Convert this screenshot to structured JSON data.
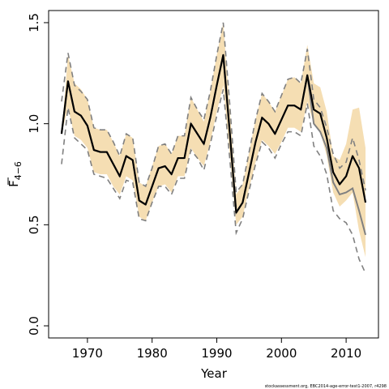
{
  "chart_data": {
    "type": "line",
    "xlabel": "Year",
    "ylabel": {
      "base": "F",
      "sub": "4−6"
    },
    "xlim": [
      1964,
      2015
    ],
    "ylim": [
      -0.06,
      1.56
    ],
    "x_ticks": [
      1970,
      1980,
      1990,
      2000,
      2010
    ],
    "y_ticks": [
      0.0,
      0.5,
      1.0,
      1.5
    ],
    "x_tick_labels": [
      "1970",
      "1980",
      "1990",
      "2000",
      "2010"
    ],
    "y_tick_labels": [
      "0.0",
      "0.5",
      "1.0",
      "1.5"
    ],
    "footer": "stockassessment.org, EBC2014-age-error-test1-2007, r4298",
    "colors": {
      "band": "#f5deb3",
      "estimate": "#000000",
      "reference": "#808080",
      "reference_ci": "#808080"
    },
    "years": [
      1966,
      1967,
      1968,
      1969,
      1970,
      1971,
      1972,
      1973,
      1974,
      1975,
      1976,
      1977,
      1978,
      1979,
      1980,
      1981,
      1982,
      1983,
      1984,
      1985,
      1986,
      1987,
      1988,
      1989,
      1990,
      1991,
      1992,
      1993,
      1994,
      1995,
      1996,
      1997,
      1998,
      1999,
      2000,
      2001,
      2002,
      2003,
      2004,
      2005,
      2006,
      2007,
      2008,
      2009,
      2010,
      2011,
      2012,
      2013
    ],
    "estimate": [
      0.95,
      1.21,
      1.06,
      1.04,
      0.99,
      0.87,
      0.86,
      0.86,
      0.8,
      0.74,
      0.84,
      0.82,
      0.62,
      0.6,
      0.69,
      0.78,
      0.79,
      0.75,
      0.83,
      0.83,
      1.0,
      0.95,
      0.9,
      1.03,
      1.19,
      1.34,
      0.96,
      0.56,
      0.61,
      0.76,
      0.91,
      1.03,
      1.0,
      0.95,
      1.02,
      1.09,
      1.09,
      1.07,
      1.24,
      1.07,
      1.05,
      0.93,
      0.76,
      0.7,
      0.74,
      0.84,
      0.78,
      0.61
    ],
    "band_lower": [
      0.95,
      1.08,
      0.94,
      0.92,
      0.88,
      0.76,
      0.75,
      0.75,
      0.69,
      0.65,
      0.74,
      0.72,
      0.54,
      0.52,
      0.61,
      0.69,
      0.7,
      0.66,
      0.74,
      0.74,
      0.88,
      0.83,
      0.79,
      0.91,
      1.06,
      1.19,
      0.85,
      0.5,
      0.54,
      0.68,
      0.81,
      0.92,
      0.89,
      0.85,
      0.91,
      0.98,
      0.98,
      0.96,
      1.11,
      1.0,
      0.96,
      0.84,
      0.66,
      0.59,
      0.62,
      0.66,
      0.47,
      0.34
    ],
    "band_upper": [
      0.95,
      1.34,
      1.2,
      1.17,
      1.12,
      0.98,
      0.97,
      0.97,
      0.91,
      0.84,
      0.95,
      0.93,
      0.71,
      0.69,
      0.79,
      0.89,
      0.9,
      0.85,
      0.94,
      0.94,
      1.13,
      1.07,
      1.01,
      1.16,
      1.34,
      1.5,
      1.08,
      0.65,
      0.7,
      0.86,
      1.02,
      1.15,
      1.11,
      1.06,
      1.14,
      1.22,
      1.23,
      1.2,
      1.39,
      1.2,
      1.18,
      1.06,
      0.84,
      0.82,
      0.9,
      1.07,
      1.08,
      0.88
    ],
    "reference_estimate": [
      0.95,
      1.21,
      1.06,
      1.04,
      0.99,
      0.87,
      0.86,
      0.86,
      0.8,
      0.74,
      0.84,
      0.82,
      0.62,
      0.6,
      0.69,
      0.78,
      0.79,
      0.75,
      0.83,
      0.83,
      1.0,
      0.95,
      0.9,
      1.03,
      1.19,
      1.34,
      0.96,
      0.56,
      0.61,
      0.76,
      0.91,
      1.03,
      1.0,
      0.95,
      1.02,
      1.09,
      1.09,
      1.07,
      1.24,
      1.0,
      0.96,
      0.88,
      0.71,
      0.65,
      0.66,
      0.68,
      0.57,
      0.45
    ],
    "reference_lower": [
      0.8,
      1.08,
      0.93,
      0.9,
      0.87,
      0.75,
      0.74,
      0.73,
      0.68,
      0.63,
      0.72,
      0.71,
      0.53,
      0.52,
      0.61,
      0.69,
      0.69,
      0.65,
      0.73,
      0.73,
      0.87,
      0.83,
      0.77,
      0.9,
      1.04,
      1.17,
      0.83,
      0.46,
      0.53,
      0.67,
      0.8,
      0.91,
      0.88,
      0.83,
      0.9,
      0.96,
      0.96,
      0.94,
      1.1,
      0.89,
      0.84,
      0.75,
      0.57,
      0.53,
      0.51,
      0.45,
      0.33,
      0.26
    ],
    "reference_upper": [
      1.11,
      1.35,
      1.19,
      1.16,
      1.12,
      0.98,
      0.97,
      0.97,
      0.91,
      0.84,
      0.95,
      0.93,
      0.71,
      0.69,
      0.78,
      0.89,
      0.9,
      0.85,
      0.94,
      0.94,
      1.13,
      1.07,
      1.02,
      1.16,
      1.34,
      1.5,
      1.1,
      0.66,
      0.7,
      0.86,
      1.02,
      1.15,
      1.11,
      1.06,
      1.14,
      1.22,
      1.23,
      1.2,
      1.37,
      1.12,
      1.08,
      0.98,
      0.85,
      0.78,
      0.81,
      0.93,
      0.82,
      0.67
    ]
  }
}
